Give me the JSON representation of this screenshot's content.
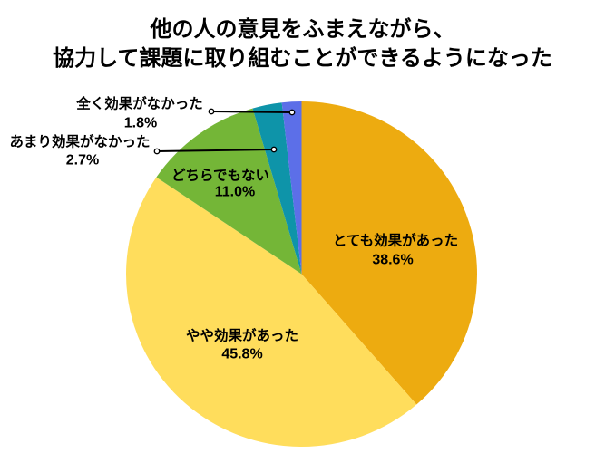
{
  "chart_data": {
    "type": "pie",
    "title_lines": [
      "他の人の意見をふまえながら、",
      "協力して課題に取り組むことができるようになった"
    ],
    "direction": "clockwise",
    "start_angle_deg": 0,
    "slices": [
      {
        "key": "very-effective",
        "label": "とても効果があった",
        "pct_label": "38.6%",
        "value": 38.6,
        "color": "#EDAB10"
      },
      {
        "key": "somewhat-effective",
        "label": "やや効果があった",
        "pct_label": "45.8%",
        "value": 45.8,
        "color": "#FFDD5C"
      },
      {
        "key": "neutral",
        "label": "どちらでもない",
        "pct_label": "11.0%",
        "value": 11.0,
        "color": "#74B637"
      },
      {
        "key": "not-very-effective",
        "label": "あまり効果がなかった",
        "pct_label": "2.7%",
        "value": 2.7,
        "color": "#0E94A9"
      },
      {
        "key": "not-at-all-effective",
        "label": "全く効果がなかった",
        "pct_label": "1.8%",
        "value": 1.8,
        "color": "#5C6FE8"
      }
    ],
    "leader_line_color": "#000000"
  }
}
